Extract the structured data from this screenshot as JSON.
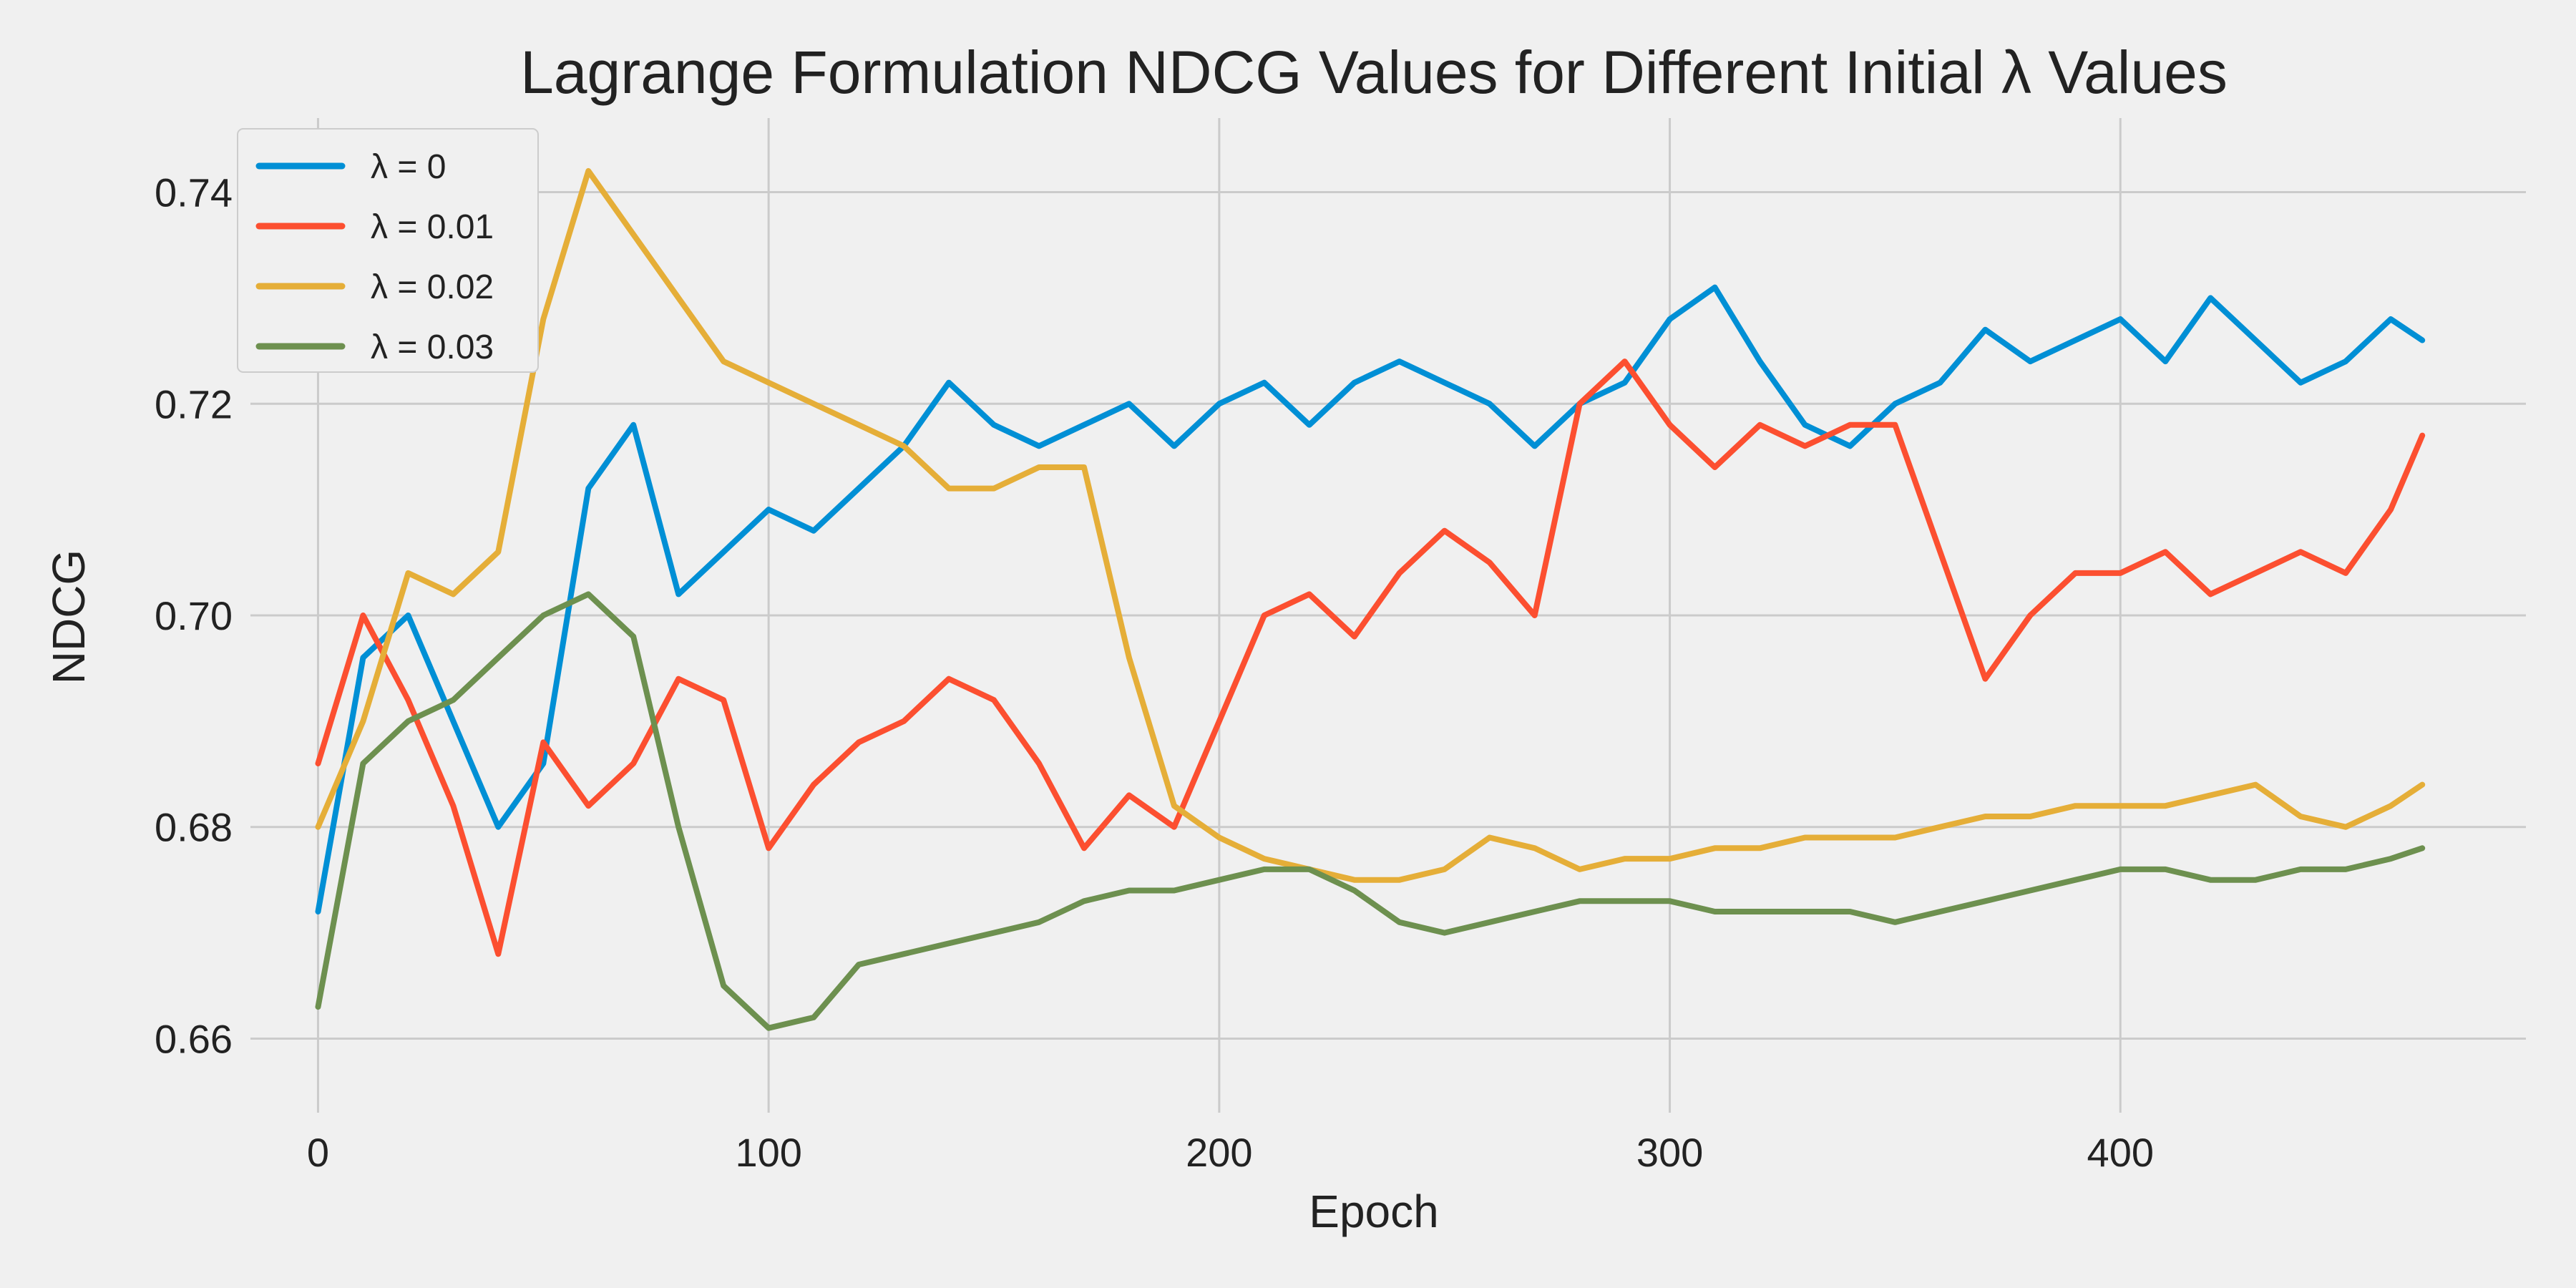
{
  "chart_data": {
    "type": "line",
    "title": "Lagrange Formulation NDCG Values for Different Initial λ Values",
    "xlabel": "Epoch",
    "ylabel": "NDCG",
    "xlim": [
      -15,
      490
    ],
    "ylim": [
      0.653,
      0.747
    ],
    "xticks": [
      0,
      100,
      200,
      300,
      400
    ],
    "yticks": [
      0.66,
      0.68,
      0.7,
      0.72,
      0.74
    ],
    "ytick_labels": [
      "0.66",
      "0.68",
      "0.70",
      "0.72",
      "0.74"
    ],
    "grid": true,
    "legend_position": "top-left",
    "x": [
      0,
      10,
      20,
      30,
      40,
      50,
      60,
      70,
      80,
      90,
      100,
      110,
      120,
      130,
      140,
      150,
      160,
      170,
      180,
      190,
      200,
      210,
      220,
      230,
      240,
      250,
      260,
      270,
      280,
      290,
      300,
      310,
      320,
      330,
      340,
      350,
      360,
      370,
      380,
      390,
      400,
      410,
      420,
      430,
      440,
      450,
      460,
      467
    ],
    "series": [
      {
        "name": "λ = 0",
        "color": "#008fd5",
        "values": [
          0.672,
          0.696,
          0.7,
          0.69,
          0.68,
          0.686,
          0.712,
          0.718,
          0.702,
          0.706,
          0.71,
          0.708,
          0.712,
          0.716,
          0.722,
          0.718,
          0.716,
          0.718,
          0.72,
          0.716,
          0.72,
          0.722,
          0.718,
          0.722,
          0.724,
          0.722,
          0.72,
          0.716,
          0.72,
          0.722,
          0.728,
          0.731,
          0.724,
          0.718,
          0.716,
          0.72,
          0.722,
          0.727,
          0.724,
          0.726,
          0.728,
          0.724,
          0.73,
          0.726,
          0.722,
          0.724,
          0.728,
          0.726
        ]
      },
      {
        "name": "λ = 0.01",
        "color": "#fc4f30",
        "values": [
          0.686,
          0.7,
          0.692,
          0.682,
          0.668,
          0.688,
          0.682,
          0.686,
          0.694,
          0.692,
          0.678,
          0.684,
          0.688,
          0.69,
          0.694,
          0.692,
          0.686,
          0.678,
          0.683,
          0.68,
          0.69,
          0.7,
          0.702,
          0.698,
          0.704,
          0.708,
          0.705,
          0.7,
          0.72,
          0.724,
          0.718,
          0.714,
          0.718,
          0.716,
          0.718,
          0.718,
          0.706,
          0.694,
          0.7,
          0.704,
          0.704,
          0.706,
          0.702,
          0.704,
          0.706,
          0.704,
          0.71,
          0.717
        ]
      },
      {
        "name": "λ = 0.02",
        "color": "#e5ae38",
        "values": [
          0.68,
          0.69,
          0.704,
          0.702,
          0.706,
          0.728,
          0.742,
          0.736,
          0.73,
          0.724,
          0.722,
          0.72,
          0.718,
          0.716,
          0.712,
          0.712,
          0.714,
          0.714,
          0.696,
          0.682,
          0.679,
          0.677,
          0.676,
          0.675,
          0.675,
          0.676,
          0.679,
          0.678,
          0.676,
          0.677,
          0.677,
          0.678,
          0.678,
          0.679,
          0.679,
          0.679,
          0.68,
          0.681,
          0.681,
          0.682,
          0.682,
          0.682,
          0.683,
          0.684,
          0.681,
          0.68,
          0.682,
          0.684
        ]
      },
      {
        "name": "λ = 0.03",
        "color": "#6d904f",
        "values": [
          0.663,
          0.686,
          0.69,
          0.692,
          0.696,
          0.7,
          0.702,
          0.698,
          0.68,
          0.665,
          0.661,
          0.662,
          0.667,
          0.668,
          0.669,
          0.67,
          0.671,
          0.673,
          0.674,
          0.674,
          0.675,
          0.676,
          0.676,
          0.674,
          0.671,
          0.67,
          0.671,
          0.672,
          0.673,
          0.673,
          0.673,
          0.672,
          0.672,
          0.672,
          0.672,
          0.671,
          0.672,
          0.673,
          0.674,
          0.675,
          0.676,
          0.676,
          0.675,
          0.675,
          0.676,
          0.676,
          0.677,
          0.678
        ]
      }
    ]
  }
}
